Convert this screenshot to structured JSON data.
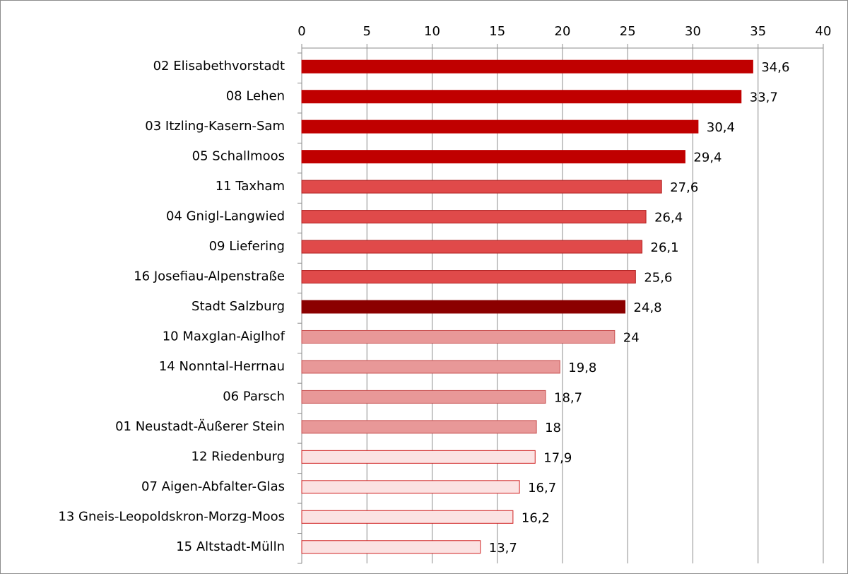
{
  "chart_data": {
    "type": "bar",
    "orientation": "horizontal",
    "categories": [
      "02 Elisabethvorstadt",
      "08 Lehen",
      "03 Itzling-Kasern-Sam",
      "05 Schallmoos",
      "11 Taxham",
      "04 Gnigl-Langwied",
      "09 Liefering",
      "16 Josefiau-Alpenstraße",
      "Stadt Salzburg",
      "10 Maxglan-Aiglhof",
      "14 Nonntal-Herrnau",
      "06 Parsch",
      "01 Neustadt-Äußerer Stein",
      "12 Riedenburg",
      "07 Aigen-Abfalter-Glas",
      "13 Gneis-Leopoldskron-Morzg-Moos",
      "15 Altstadt-Mülln"
    ],
    "values": [
      34.6,
      33.7,
      30.4,
      29.4,
      27.6,
      26.4,
      26.1,
      25.6,
      24.8,
      24,
      19.8,
      18.7,
      18,
      17.9,
      16.7,
      16.2,
      13.7
    ],
    "value_labels": [
      "34,6",
      "33,7",
      "30,4",
      "29,4",
      "27,6",
      "26,4",
      "26,1",
      "25,6",
      "24,8",
      "24",
      "19,8",
      "18,7",
      "18",
      "17,9",
      "16,7",
      "16,2",
      "13,7"
    ],
    "colors": [
      "#c00000",
      "#c00000",
      "#c00000",
      "#c00000",
      "#e04a4a",
      "#e04a4a",
      "#e04a4a",
      "#e04a4a",
      "#8b0000",
      "#e89898",
      "#e89898",
      "#e89898",
      "#e89898",
      "#fbe2e2",
      "#fbe2e2",
      "#fbe2e2",
      "#fbe2e2"
    ],
    "xlim": [
      0,
      40
    ],
    "xticks": [
      0,
      5,
      10,
      15,
      20,
      25,
      30,
      35,
      40
    ],
    "grid": true,
    "x_axis_position": "top"
  }
}
